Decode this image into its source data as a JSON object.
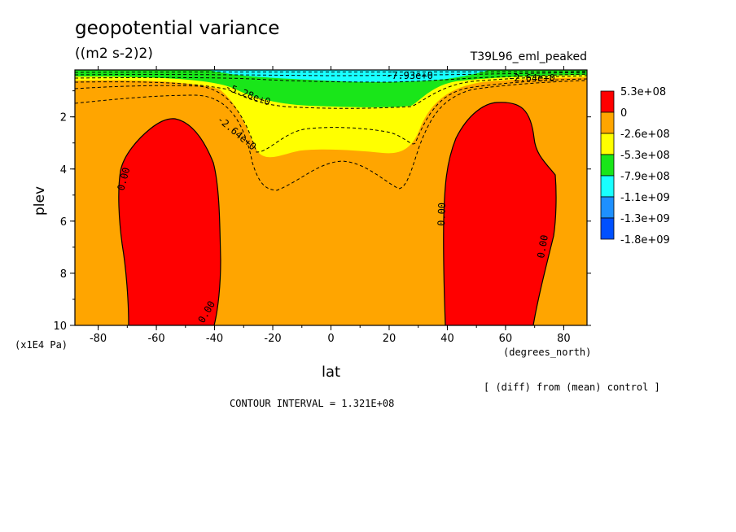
{
  "chart_data": {
    "type": "heatmap",
    "title": "geopotential variance",
    "subtitle": "((m2 s-2)2)",
    "run_label": "T39L96_eml_peaked",
    "xlabel": "lat",
    "xunits": "(degrees_north)",
    "ylabel": "plev",
    "yunits": "(x1E4 Pa)",
    "xlim": [
      -88,
      88
    ],
    "ylim": [
      10,
      0.2
    ],
    "x_ticks": [
      "-80",
      "-60",
      "-40",
      "-20",
      "0",
      "20",
      "40",
      "60",
      "80"
    ],
    "y_ticks": [
      "2",
      "4",
      "6",
      "8",
      "10"
    ],
    "colorbar": {
      "labels": [
        "5.3e+08",
        "0",
        "-2.6e+08",
        "-5.3e+08",
        "-7.9e+08",
        "-1.1e+09",
        "-1.3e+09",
        "-1.8e+09"
      ],
      "colors": [
        "#ff0000",
        "#ffa500",
        "#ffff00",
        "#19e619",
        "#19ffff",
        "#1e90ff",
        "#0050ff"
      ]
    },
    "contour_labels": [
      "0.00",
      "0.00",
      "0.00",
      "0.00",
      "0.00",
      "-5.28e+0",
      "-2.64e+0",
      "-7.93e+0",
      "-2.64e+0"
    ],
    "note": "[ (diff) from (mean) control ]",
    "contour_interval": "CONTOUR INTERVAL = 1.321E+08"
  }
}
